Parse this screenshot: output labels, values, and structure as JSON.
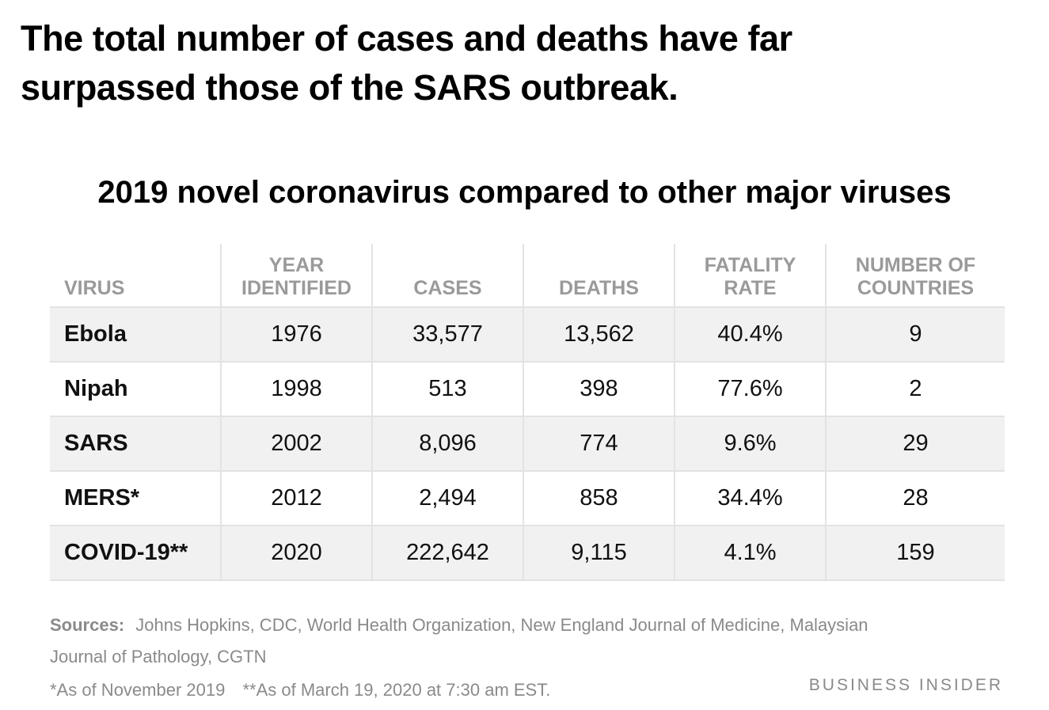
{
  "headline": "The total number of cases and deaths have far surpassed those of the SARS outbreak.",
  "chart_data": {
    "type": "table",
    "title": "2019 novel coronavirus compared to other major viruses",
    "columns": [
      [
        "VIRUS"
      ],
      [
        "YEAR",
        "IDENTIFIED"
      ],
      [
        "CASES"
      ],
      [
        "DEATHS"
      ],
      [
        "FATALITY",
        "RATE"
      ],
      [
        "NUMBER OF",
        "COUNTRIES"
      ]
    ],
    "rows": [
      [
        "Ebola",
        "1976",
        "33,577",
        "13,562",
        "40.4%",
        "9"
      ],
      [
        "Nipah",
        "1998",
        "513",
        "398",
        "77.6%",
        "2"
      ],
      [
        "SARS",
        "2002",
        "8,096",
        "774",
        "9.6%",
        "29"
      ],
      [
        "MERS*",
        "2012",
        "2,494",
        "858",
        "34.4%",
        "28"
      ],
      [
        "COVID-19**",
        "2020",
        "222,642",
        "9,115",
        "4.1%",
        "159"
      ]
    ]
  },
  "sources": {
    "label": "Sources:",
    "text": "Johns Hopkins, CDC, World Health Organization, New England Journal of Medicine, Malaysian Journal of Pathology, CGTN"
  },
  "footnotes": {
    "mers": "*As of November 2019",
    "covid": "**As of March 19, 2020 at 7:30 am EST."
  },
  "brand": "BUSINESS INSIDER"
}
